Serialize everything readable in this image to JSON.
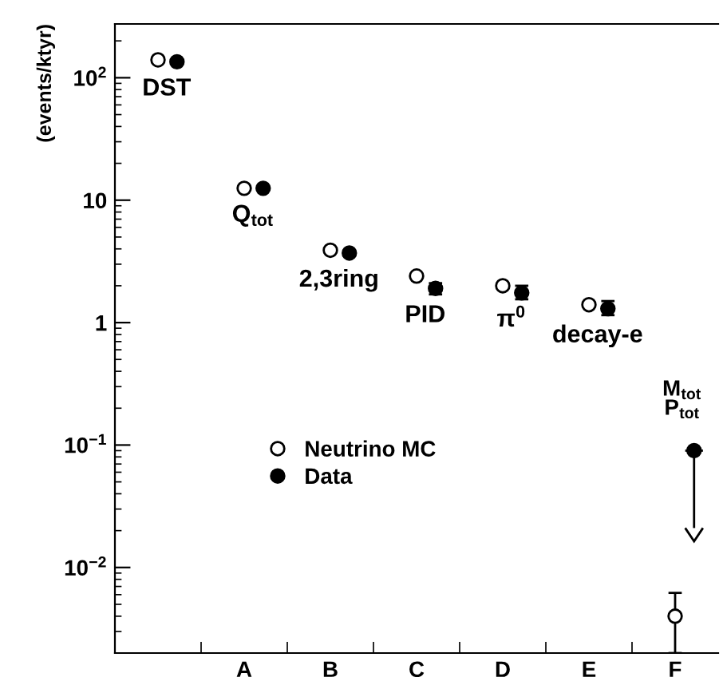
{
  "chart_data": {
    "type": "scatter",
    "ylabel": "(events/ktyr)",
    "categories": [
      null,
      "A",
      "B",
      "C",
      "D",
      "E",
      "F"
    ],
    "series": [
      {
        "name": "Neutrino MC",
        "color": "#000000",
        "values": [
          140,
          12.5,
          3.9,
          2.4,
          2.0,
          1.4,
          0.004
        ],
        "errors": [
          null,
          null,
          null,
          null,
          null,
          null,
          [
            0.002,
            0.0062
          ]
        ]
      },
      {
        "name": "Data",
        "color": "#000000",
        "values": [
          135,
          12.5,
          3.7,
          1.9,
          1.75,
          1.3,
          0.09
        ],
        "errors": [
          null,
          null,
          null,
          [
            1.7,
            2.1
          ],
          [
            1.55,
            2.0
          ],
          [
            1.15,
            1.5
          ],
          [
            0.021,
            0.09
          ]
        ]
      }
    ],
    "annotations": [
      "DST",
      "Q$_{tot}$",
      "2,3ring",
      "PID",
      "π$^{0}$",
      "decay-e",
      "M$_{tot}$\nP$_{tot}$"
    ],
    "log": "y",
    "ylim": [
      0.002,
      275
    ],
    "yticks": [
      {
        "value": 0.01,
        "label": "10$^{−2}$"
      },
      {
        "value": 0.1,
        "label": "10$^{−1}$"
      },
      1,
      10,
      {
        "value": 100,
        "label": "10$^{2}$"
      }
    ],
    "marker": "circle",
    "legend": "left",
    "grid": false
  }
}
